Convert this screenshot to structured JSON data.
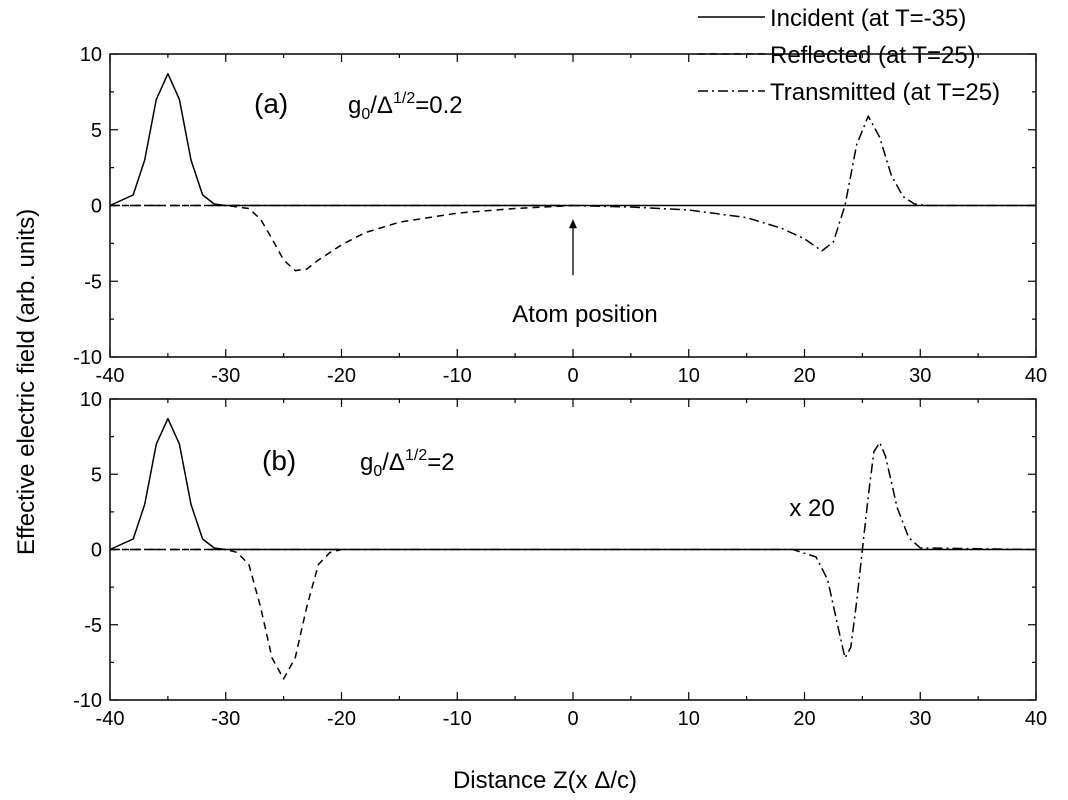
{
  "chart_data": {
    "type": "line",
    "xlabel": "Distance Z(x Δ/c)",
    "ylabel": "Effective electric field (arb. units)",
    "xlim": [
      -40,
      40
    ],
    "ylim": [
      -10,
      10
    ],
    "xticks": [
      "-40",
      "-30",
      "-20",
      "-10",
      "0",
      "10",
      "20",
      "30",
      "40"
    ],
    "yticks": [
      "10",
      "5",
      "0",
      "-5",
      "-10"
    ],
    "legend": {
      "placement": "top-right",
      "entries": [
        {
          "label": "Incident (at T=-35)",
          "style": "solid"
        },
        {
          "label": "Reflected (at T=25)",
          "style": "dashed"
        },
        {
          "label": "Transmitted (at T=25)",
          "style": "dashdot"
        }
      ]
    },
    "panels": [
      {
        "id": "a",
        "panel_label": "(a)",
        "param": {
          "g": "g",
          "sub": "0",
          "slash": "/Δ",
          "sup": "1/2",
          "value": "=0.2"
        },
        "annotation": "Atom position",
        "series": [
          {
            "name": "Incident (at T=-35)",
            "style": "solid",
            "x": [
              -40,
              -38,
              -37,
              -36,
              -35,
              -34,
              -33,
              -32,
              -31,
              -30,
              40
            ],
            "y": [
              0,
              0.7,
              3.0,
              7.0,
              8.7,
              7.0,
              3.0,
              0.7,
              0.1,
              0,
              0
            ]
          },
          {
            "name": "Reflected (at T=25)",
            "style": "dashed",
            "x": [
              -40,
              -30,
              -28,
              -27,
              -26,
              -25,
              -24,
              -23,
              -22,
              -20,
              -18,
              -15,
              -10,
              -5,
              0
            ],
            "y": [
              0,
              0,
              -0.2,
              -0.9,
              -2.2,
              -3.6,
              -4.3,
              -4.2,
              -3.6,
              -2.6,
              -1.8,
              -1.1,
              -0.5,
              -0.2,
              0
            ]
          },
          {
            "name": "Transmitted (at T=25)",
            "style": "dashdot",
            "x": [
              -40,
              0,
              5,
              10,
              15,
              18,
              20,
              21.5,
              22.5,
              23.5,
              24.5,
              25.5,
              26.5,
              27.5,
              28.5,
              29.5,
              30.5,
              40
            ],
            "y": [
              0,
              0,
              -0.1,
              -0.3,
              -0.8,
              -1.5,
              -2.2,
              -3.0,
              -2.4,
              0.0,
              4.0,
              5.9,
              4.5,
              2.0,
              0.6,
              0.1,
              0,
              0
            ]
          }
        ]
      },
      {
        "id": "b",
        "panel_label": "(b)",
        "param": {
          "g": "g",
          "sub": "0",
          "slash": "/Δ",
          "sup": "1/2",
          "value": "=2"
        },
        "annotation": "x 20",
        "series": [
          {
            "name": "Incident (at T=-35)",
            "style": "solid",
            "x": [
              -40,
              -38,
              -37,
              -36,
              -35,
              -34,
              -33,
              -32,
              -31,
              -30,
              40
            ],
            "y": [
              0,
              0.7,
              3.0,
              7.0,
              8.7,
              7.0,
              3.0,
              0.7,
              0.1,
              0,
              0
            ]
          },
          {
            "name": "Reflected (at T=25)",
            "style": "dashed",
            "x": [
              -40,
              -30,
              -29,
              -28,
              -27,
              -26,
              -25,
              -24,
              -23,
              -22,
              -21,
              -20
            ],
            "y": [
              0,
              0,
              -0.2,
              -1.0,
              -3.8,
              -7.2,
              -8.6,
              -7.2,
              -3.8,
              -1.0,
              -0.2,
              0
            ]
          },
          {
            "name": "Transmitted (at T=25)",
            "style": "dashdot",
            "x": [
              -40,
              19,
              21,
              22,
              23,
              23.5,
              24,
              24.5,
              25,
              25.5,
              26,
              26.5,
              27,
              28,
              29,
              30,
              40
            ],
            "y": [
              0,
              0,
              -0.5,
              -2.0,
              -5.5,
              -7.2,
              -6.5,
              -3.5,
              0.0,
              3.5,
              6.5,
              7.1,
              6.2,
              2.8,
              0.8,
              0.1,
              0
            ]
          }
        ]
      }
    ]
  }
}
